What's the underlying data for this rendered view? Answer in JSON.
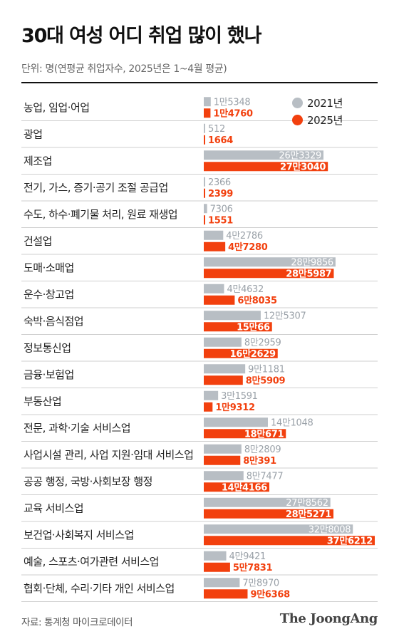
{
  "title": "30대 여성 어디 취업 많이 했나",
  "subtitle": "단위: 명(연평균 취업자수, 2025년은 1~4월 평균)",
  "source": "자료: 통계청 마이크로데이터",
  "brand": "The JoongAng",
  "colors": {
    "series_2021": "#b8bec4",
    "series_2025": "#f2400e",
    "divider": "#cfcfcf",
    "text": "#222222"
  },
  "chart_data": {
    "type": "bar",
    "orientation": "horizontal",
    "categories": [
      "농업, 임업·어업",
      "광업",
      "제조업",
      "전기, 가스, 증기·공기 조절 공급업",
      "수도, 하수·폐기물 처리, 원료 재생업",
      "건설업",
      "도매·소매업",
      "운수·창고업",
      "숙박·음식점업",
      "정보통신업",
      "금융·보험업",
      "부동산업",
      "전문, 과학·기술 서비스업",
      "사업시설 관리, 사업 지원·임대 서비스업",
      "공공 행정, 국방·사회보장 행정",
      "교육 서비스업",
      "보건업·사회복지 서비스업",
      "예술, 스포츠·여가관련 서비스업",
      "협회·단체, 수리·기타 개인 서비스업"
    ],
    "series": [
      {
        "name": "2021년",
        "values": [
          15348,
          512,
          263329,
          2366,
          7306,
          42786,
          289856,
          44632,
          125307,
          82959,
          91181,
          31591,
          141048,
          82809,
          87477,
          278562,
          328008,
          49421,
          78970
        ],
        "labels": [
          "1만5348",
          "512",
          "26만3329",
          "2366",
          "7306",
          "4만2786",
          "28만9856",
          "4만4632",
          "12만5307",
          "8만2959",
          "9만1181",
          "3만1591",
          "14만1048",
          "8만2809",
          "8만7477",
          "27만8562",
          "32만8008",
          "4만9421",
          "7만8970"
        ]
      },
      {
        "name": "2025년",
        "values": [
          14760,
          1664,
          273040,
          2399,
          1551,
          47280,
          285987,
          68035,
          150066,
          162629,
          85909,
          19312,
          180671,
          80391,
          144166,
          285271,
          376212,
          57831,
          96368
        ],
        "labels": [
          "1만4760",
          "1664",
          "27만3040",
          "2399",
          "1551",
          "4만7280",
          "28만5987",
          "6만8035",
          "15만66",
          "16만2629",
          "8만5909",
          "1만9312",
          "18만671",
          "8만391",
          "14만4166",
          "28만5271",
          "37만6212",
          "5만7831",
          "9만6368"
        ]
      }
    ],
    "legend": "top-right",
    "grid": false
  }
}
